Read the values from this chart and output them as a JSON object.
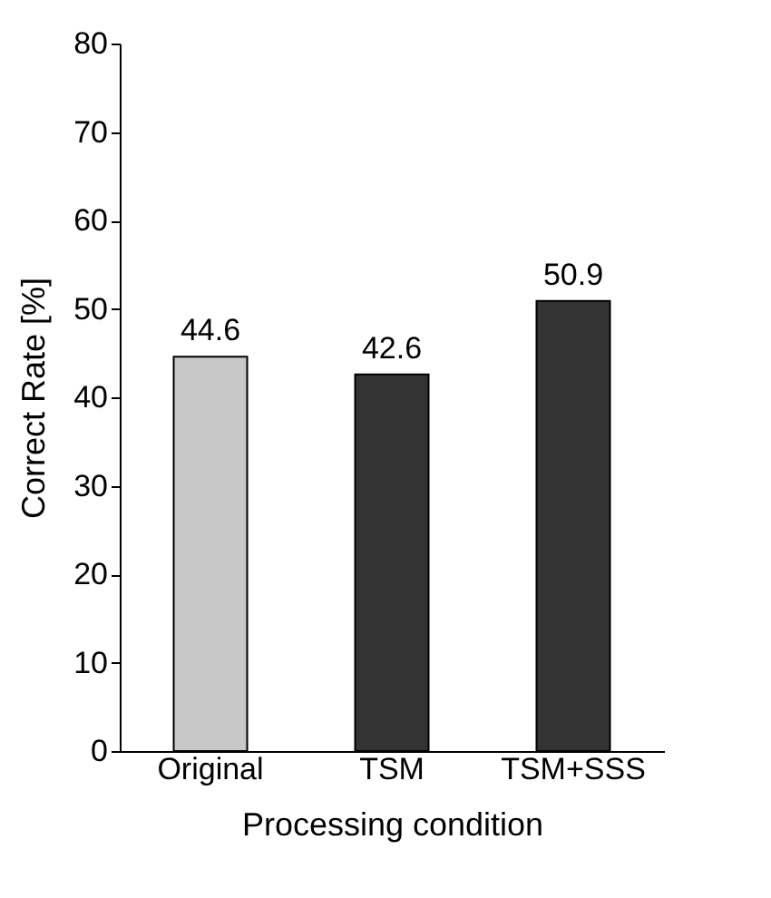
{
  "chart_data": {
    "type": "bar",
    "categories": [
      "Original",
      "TSM",
      "TSM+SSS"
    ],
    "values": [
      44.6,
      42.6,
      50.9
    ],
    "colors": [
      "#c8c8c8",
      "#333333",
      "#333333"
    ],
    "xlabel": "Processing condition",
    "ylabel": "Correct Rate [%]",
    "ylim": [
      0,
      80
    ],
    "yticks": [
      0,
      10,
      20,
      30,
      40,
      50,
      60,
      70,
      80
    ],
    "data_labels": true,
    "grid": false,
    "legend": false
  }
}
